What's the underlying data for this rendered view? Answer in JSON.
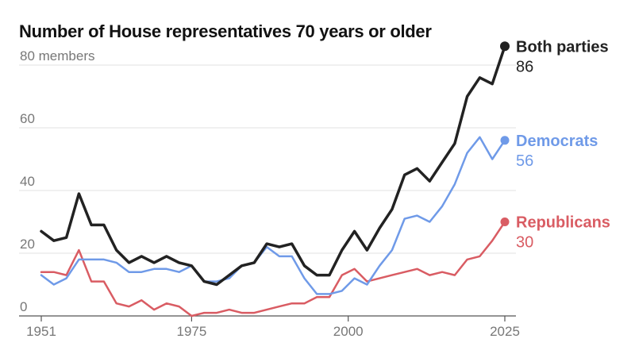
{
  "chart_data": {
    "type": "line",
    "title": "Number of House representatives 70 years or older",
    "ylabel_unit": "members",
    "x": [
      1951,
      1953,
      1955,
      1957,
      1959,
      1961,
      1963,
      1965,
      1967,
      1969,
      1971,
      1973,
      1975,
      1977,
      1979,
      1981,
      1983,
      1985,
      1987,
      1989,
      1991,
      1993,
      1995,
      1997,
      1999,
      2001,
      2003,
      2005,
      2007,
      2009,
      2011,
      2013,
      2015,
      2017,
      2019,
      2021,
      2023,
      2025
    ],
    "xticks": [
      1951,
      1975,
      2000,
      2025
    ],
    "yticks": [
      0,
      20,
      40,
      60,
      80
    ],
    "xlim": [
      1951,
      2025
    ],
    "ylim": [
      0,
      80
    ],
    "grid": true,
    "series": [
      {
        "name": "Both parties",
        "color": "#222222",
        "end_value": "86",
        "values": [
          27,
          24,
          25,
          39,
          29,
          29,
          21,
          17,
          19,
          17,
          19,
          17,
          16,
          11,
          10,
          13,
          16,
          17,
          23,
          22,
          23,
          16,
          13,
          13,
          21,
          27,
          21,
          28,
          34,
          45,
          47,
          43,
          49,
          55,
          70,
          76,
          74,
          86
        ]
      },
      {
        "name": "Democrats",
        "color": "#6f9ae8",
        "end_value": "56",
        "values": [
          13,
          10,
          12,
          18,
          18,
          18,
          17,
          14,
          14,
          15,
          15,
          14,
          16,
          11,
          11,
          12,
          16,
          17,
          22,
          19,
          19,
          12,
          7,
          7,
          8,
          12,
          10,
          16,
          21,
          31,
          32,
          30,
          35,
          42,
          52,
          57,
          50,
          56
        ]
      },
      {
        "name": "Republicans",
        "color": "#d95c63",
        "end_value": "30",
        "values": [
          14,
          14,
          13,
          21,
          11,
          11,
          4,
          3,
          5,
          2,
          4,
          3,
          0,
          1,
          1,
          2,
          1,
          1,
          2,
          3,
          4,
          4,
          6,
          6,
          13,
          15,
          11,
          12,
          13,
          14,
          15,
          13,
          14,
          13,
          18,
          19,
          24,
          30
        ]
      }
    ]
  }
}
